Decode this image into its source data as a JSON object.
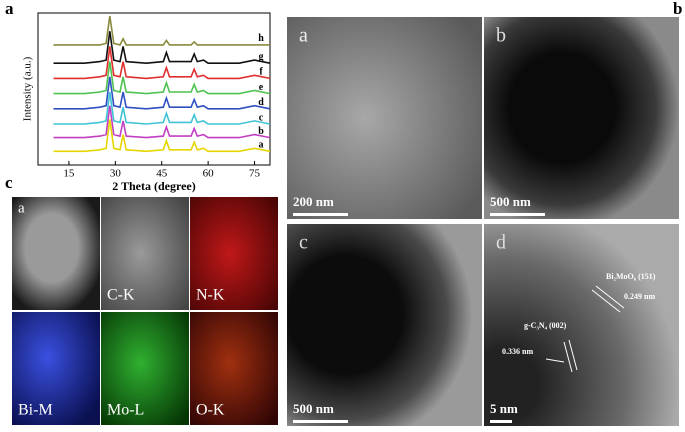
{
  "panel_labels": [
    "a",
    "b",
    "c"
  ],
  "chart_data": {
    "type": "line",
    "x_label": "2 Theta (degree)",
    "y_label": "Intensity (a.u.)",
    "xlim": [
      5,
      80
    ],
    "xticks": [
      15,
      30,
      45,
      60,
      75
    ],
    "ylim": [
      0,
      100
    ],
    "x": [
      10,
      15,
      20,
      25,
      27,
      28.2,
      29.5,
      31.5,
      32.5,
      33.5,
      40,
      45.5,
      46.5,
      47.5,
      54.5,
      55.5,
      56.5,
      58.5,
      60,
      70,
      75,
      80
    ],
    "series": [
      {
        "name": "a",
        "color": "#e6d600",
        "values": [
          9,
          9,
          9,
          10,
          11,
          30,
          11,
          10,
          20,
          10,
          9,
          10,
          16,
          10,
          10,
          15,
          10,
          11,
          9,
          9,
          11,
          9
        ]
      },
      {
        "name": "b",
        "color": "#c23fc2",
        "values": [
          18,
          18,
          18,
          19,
          20,
          39,
          20,
          19,
          29,
          19,
          18,
          19,
          25,
          19,
          19,
          24,
          19,
          20,
          18,
          18,
          20,
          18
        ]
      },
      {
        "name": "c",
        "color": "#3fc4d4",
        "values": [
          27,
          27,
          27,
          28,
          29,
          48,
          29,
          28,
          38,
          28,
          27,
          28,
          34,
          28,
          28,
          33,
          28,
          29,
          27,
          27,
          29,
          27
        ]
      },
      {
        "name": "d",
        "color": "#2f4fc2",
        "values": [
          37,
          37,
          37,
          38,
          39,
          58,
          39,
          38,
          48,
          38,
          37,
          38,
          44,
          38,
          38,
          43,
          38,
          39,
          37,
          37,
          39,
          37
        ]
      },
      {
        "name": "e",
        "color": "#4fc24f",
        "values": [
          47,
          47,
          47,
          48,
          49,
          68,
          49,
          48,
          58,
          48,
          47,
          48,
          54,
          48,
          48,
          53,
          48,
          49,
          47,
          47,
          49,
          47
        ]
      },
      {
        "name": "f",
        "color": "#e02f2f",
        "values": [
          57,
          57,
          57,
          58,
          59,
          78,
          59,
          58,
          68,
          58,
          57,
          58,
          64,
          58,
          58,
          63,
          58,
          59,
          57,
          57,
          59,
          57
        ]
      },
      {
        "name": "g",
        "color": "#111111",
        "values": [
          67,
          67,
          67,
          68,
          69,
          88,
          69,
          68,
          78,
          68,
          67,
          68,
          74,
          68,
          68,
          73,
          68,
          69,
          67,
          67,
          69,
          67
        ]
      },
      {
        "name": "h",
        "color": "#8a8a3c",
        "values": [
          79,
          79,
          79,
          79,
          80,
          98,
          80,
          79,
          83,
          79,
          79,
          79,
          82,
          79,
          79,
          81,
          79,
          79,
          79,
          79,
          79,
          79
        ]
      }
    ]
  },
  "tem_images": [
    {
      "label": "a",
      "scale_bar": "200 nm"
    },
    {
      "label": "b",
      "scale_bar": "500 nm"
    },
    {
      "label": "c",
      "scale_bar": "500 nm"
    },
    {
      "label": "d",
      "scale_bar": "5 nm",
      "annotations": [
        "Bi₂MoO₆ (151)",
        "0.249 nm",
        "g-C₃N₄ (002)",
        "0.336 nm"
      ]
    }
  ],
  "mapping_images": [
    {
      "label": "a"
    },
    {
      "label": "C-K"
    },
    {
      "label": "N-K"
    },
    {
      "label": "Bi-M"
    },
    {
      "label": "Mo-L"
    },
    {
      "label": "O-K"
    }
  ]
}
